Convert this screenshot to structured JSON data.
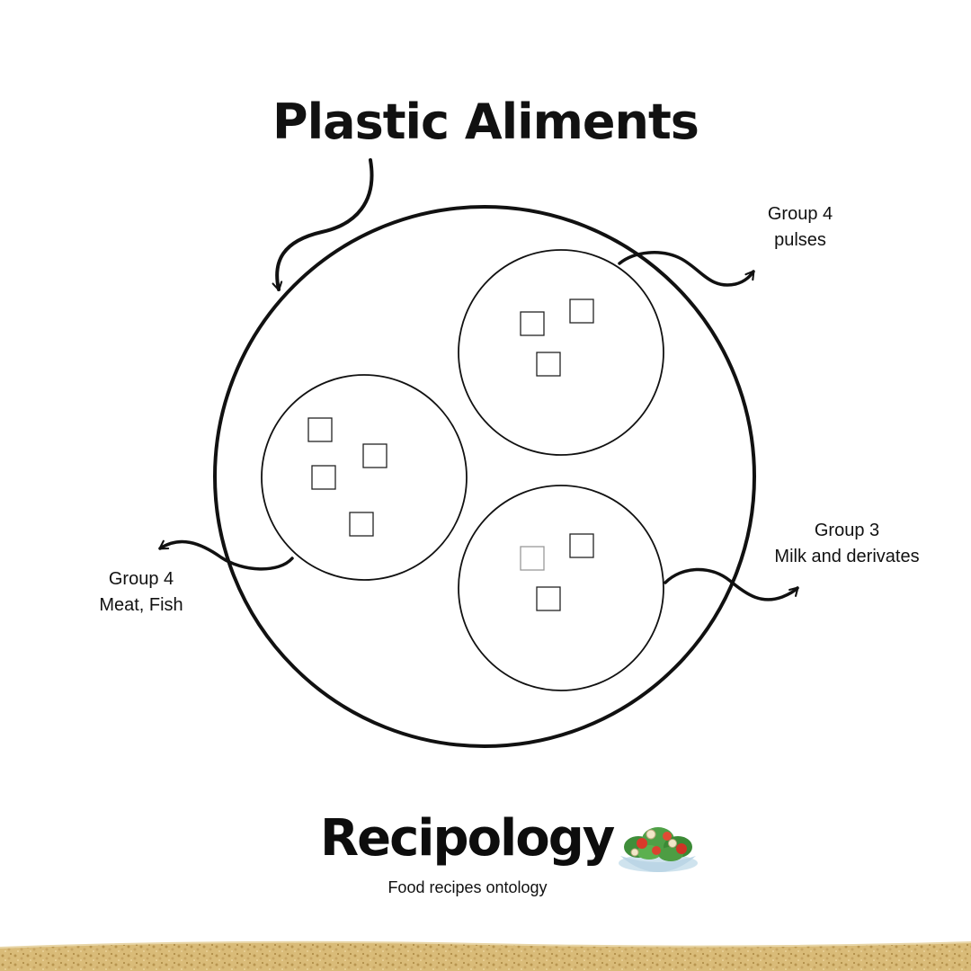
{
  "title": "Plastic Aliments",
  "groups": {
    "pulses": {
      "line1": "Group 4",
      "line2": "pulses"
    },
    "meat_fish": {
      "line1": "Group 4",
      "line2": "Meat, Fish"
    },
    "milk": {
      "line1": "Group 3",
      "line2": "Milk and derivates"
    }
  },
  "brand": {
    "name": "Recipology",
    "tagline": "Food recipes ontology",
    "logo_icon": "salad-bowl-icon"
  },
  "colors": {
    "stroke": "#111111",
    "background": "#ffffff",
    "sand": "#d9bb78"
  }
}
